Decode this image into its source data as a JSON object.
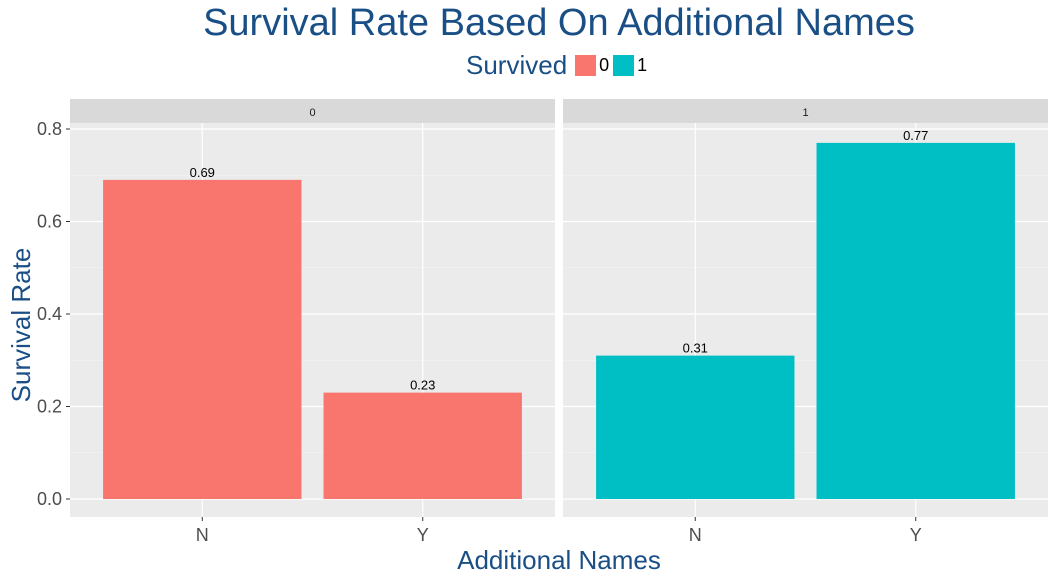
{
  "chart_data": {
    "type": "bar",
    "title": "Survival Rate Based On Additional Names",
    "xlabel": "Additional Names",
    "ylabel": "Survival Rate",
    "ylim": [
      0,
      0.8
    ],
    "yticks": [
      "0.0",
      "0.2",
      "0.4",
      "0.6",
      "0.8"
    ],
    "categories": [
      "N",
      "Y"
    ],
    "legend": {
      "title": "Survived",
      "placement": "top",
      "items": [
        {
          "label": "0",
          "color": "#F8766D"
        },
        {
          "label": "1",
          "color": "#00BFC4"
        }
      ]
    },
    "facets": [
      {
        "strip": "0",
        "color": "#F8766D",
        "values": [
          0.69,
          0.23
        ],
        "labels": [
          "0.69",
          "0.23"
        ]
      },
      {
        "strip": "1",
        "color": "#00BFC4",
        "values": [
          0.31,
          0.77
        ],
        "labels": [
          "0.31",
          "0.77"
        ]
      }
    ],
    "grid": true,
    "panel_background": "#EBEBEB",
    "strip_background": "#D9D9D9"
  }
}
